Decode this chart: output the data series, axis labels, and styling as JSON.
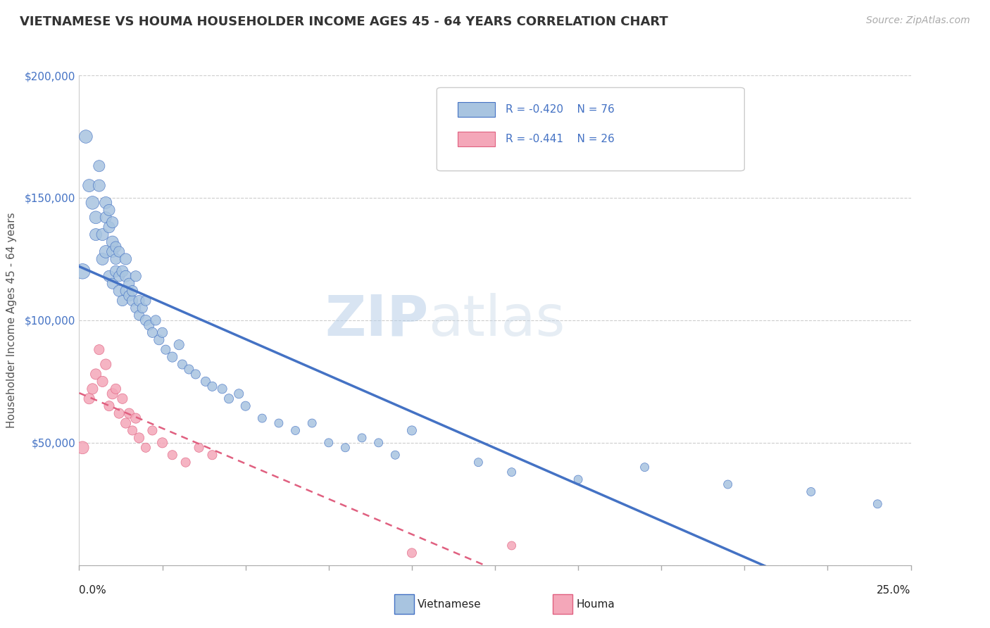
{
  "title": "VIETNAMESE VS HOUMA HOUSEHOLDER INCOME AGES 45 - 64 YEARS CORRELATION CHART",
  "source": "Source: ZipAtlas.com",
  "ylabel": "Householder Income Ages 45 - 64 years",
  "watermark_zip": "ZIP",
  "watermark_atlas": "atlas",
  "legend": [
    {
      "label": "Vietnamese",
      "R": -0.42,
      "N": 76,
      "color": "#a8c4e0",
      "line_color": "#4472c4"
    },
    {
      "label": "Houma",
      "R": -0.441,
      "N": 26,
      "color": "#f4a7b9",
      "line_color": "#e06080"
    }
  ],
  "xlim": [
    0.0,
    0.25
  ],
  "ylim": [
    0,
    200000
  ],
  "yticks": [
    0,
    50000,
    100000,
    150000,
    200000
  ],
  "ytick_labels": [
    "",
    "$50,000",
    "$100,000",
    "$150,000",
    "$200,000"
  ],
  "background_color": "#ffffff",
  "viet_x": [
    0.001,
    0.002,
    0.003,
    0.004,
    0.005,
    0.005,
    0.006,
    0.006,
    0.007,
    0.007,
    0.008,
    0.008,
    0.008,
    0.009,
    0.009,
    0.009,
    0.01,
    0.01,
    0.01,
    0.01,
    0.011,
    0.011,
    0.011,
    0.012,
    0.012,
    0.012,
    0.013,
    0.013,
    0.014,
    0.014,
    0.014,
    0.015,
    0.015,
    0.016,
    0.016,
    0.017,
    0.017,
    0.018,
    0.018,
    0.019,
    0.02,
    0.02,
    0.021,
    0.022,
    0.023,
    0.024,
    0.025,
    0.026,
    0.028,
    0.03,
    0.031,
    0.033,
    0.035,
    0.038,
    0.04,
    0.043,
    0.045,
    0.048,
    0.05,
    0.055,
    0.06,
    0.065,
    0.07,
    0.075,
    0.08,
    0.085,
    0.09,
    0.095,
    0.1,
    0.12,
    0.13,
    0.15,
    0.17,
    0.195,
    0.22,
    0.24
  ],
  "viet_y": [
    120000,
    175000,
    155000,
    148000,
    135000,
    142000,
    155000,
    163000,
    125000,
    135000,
    128000,
    142000,
    148000,
    138000,
    145000,
    118000,
    132000,
    128000,
    115000,
    140000,
    120000,
    130000,
    125000,
    112000,
    128000,
    118000,
    120000,
    108000,
    118000,
    125000,
    112000,
    110000,
    115000,
    108000,
    112000,
    105000,
    118000,
    102000,
    108000,
    105000,
    100000,
    108000,
    98000,
    95000,
    100000,
    92000,
    95000,
    88000,
    85000,
    90000,
    82000,
    80000,
    78000,
    75000,
    73000,
    72000,
    68000,
    70000,
    65000,
    60000,
    58000,
    55000,
    58000,
    50000,
    48000,
    52000,
    50000,
    45000,
    55000,
    42000,
    38000,
    35000,
    40000,
    33000,
    30000,
    25000
  ],
  "viet_size": [
    80,
    60,
    55,
    60,
    50,
    55,
    50,
    45,
    50,
    50,
    55,
    45,
    50,
    45,
    45,
    45,
    50,
    45,
    40,
    45,
    45,
    40,
    40,
    45,
    40,
    40,
    45,
    40,
    45,
    45,
    40,
    40,
    40,
    40,
    40,
    35,
    40,
    35,
    40,
    35,
    40,
    35,
    35,
    35,
    35,
    35,
    35,
    30,
    35,
    35,
    30,
    30,
    30,
    30,
    30,
    30,
    30,
    30,
    30,
    25,
    25,
    25,
    25,
    25,
    25,
    25,
    25,
    25,
    30,
    25,
    25,
    25,
    25,
    25,
    25,
    25
  ],
  "houma_x": [
    0.001,
    0.003,
    0.004,
    0.005,
    0.006,
    0.007,
    0.008,
    0.009,
    0.01,
    0.011,
    0.012,
    0.013,
    0.014,
    0.015,
    0.016,
    0.017,
    0.018,
    0.02,
    0.022,
    0.025,
    0.028,
    0.032,
    0.036,
    0.04,
    0.1,
    0.13
  ],
  "houma_y": [
    48000,
    68000,
    72000,
    78000,
    88000,
    75000,
    82000,
    65000,
    70000,
    72000,
    62000,
    68000,
    58000,
    62000,
    55000,
    60000,
    52000,
    48000,
    55000,
    50000,
    45000,
    42000,
    48000,
    45000,
    5000,
    8000
  ],
  "houma_size": [
    55,
    40,
    40,
    40,
    35,
    40,
    40,
    35,
    40,
    35,
    35,
    35,
    35,
    35,
    30,
    35,
    35,
    30,
    30,
    35,
    30,
    30,
    30,
    30,
    30,
    25
  ]
}
